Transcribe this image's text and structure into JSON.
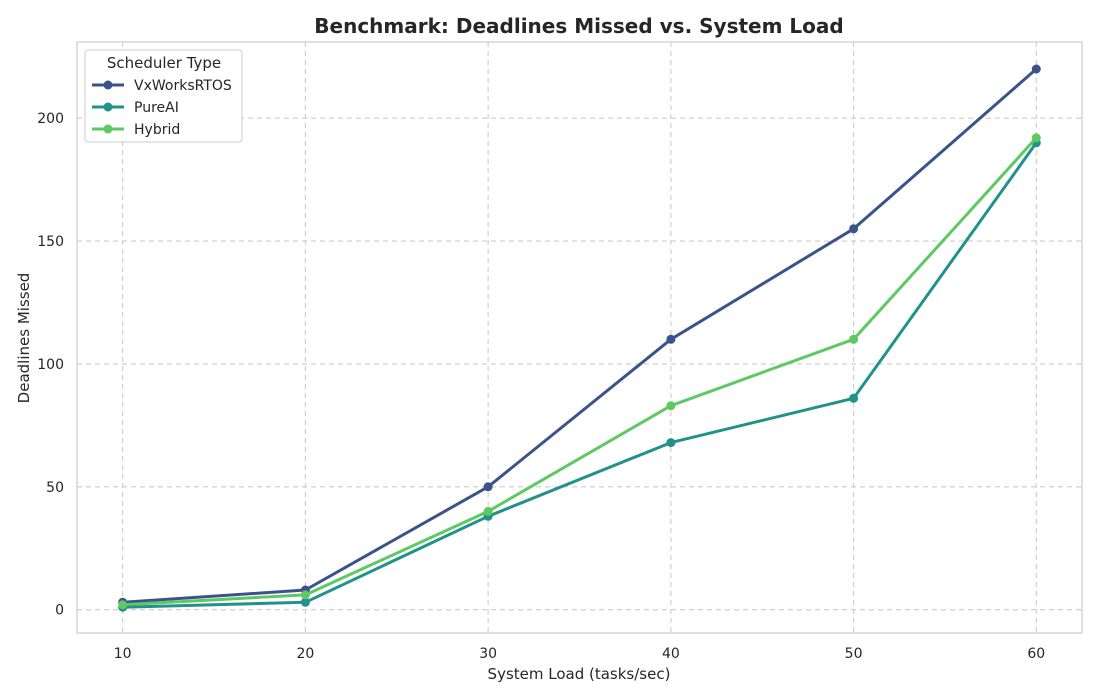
{
  "chart_data": {
    "type": "line",
    "title": "Benchmark: Deadlines Missed vs. System Load",
    "xlabel": "System Load (tasks/sec)",
    "ylabel": "Deadlines Missed",
    "x": [
      10,
      20,
      30,
      40,
      50,
      60
    ],
    "x_ticks": [
      "10",
      "20",
      "30",
      "40",
      "50",
      "60"
    ],
    "y_ticks": [
      "0",
      "50",
      "100",
      "150",
      "200"
    ],
    "xlim": [
      7.5,
      62.5
    ],
    "ylim": [
      -9.5,
      231
    ],
    "grid": true,
    "grid_style": "dashed",
    "legend": {
      "title": "Scheduler Type",
      "placement": "top-left"
    },
    "series": [
      {
        "name": "VxWorksRTOS",
        "color": "#3b528b",
        "values": [
          3,
          8,
          50,
          110,
          155,
          220
        ]
      },
      {
        "name": "PureAI",
        "color": "#21918c",
        "values": [
          1,
          3,
          38,
          68,
          86,
          190
        ]
      },
      {
        "name": "Hybrid",
        "color": "#5ec962",
        "values": [
          2,
          6,
          40,
          83,
          110,
          192
        ]
      }
    ]
  }
}
